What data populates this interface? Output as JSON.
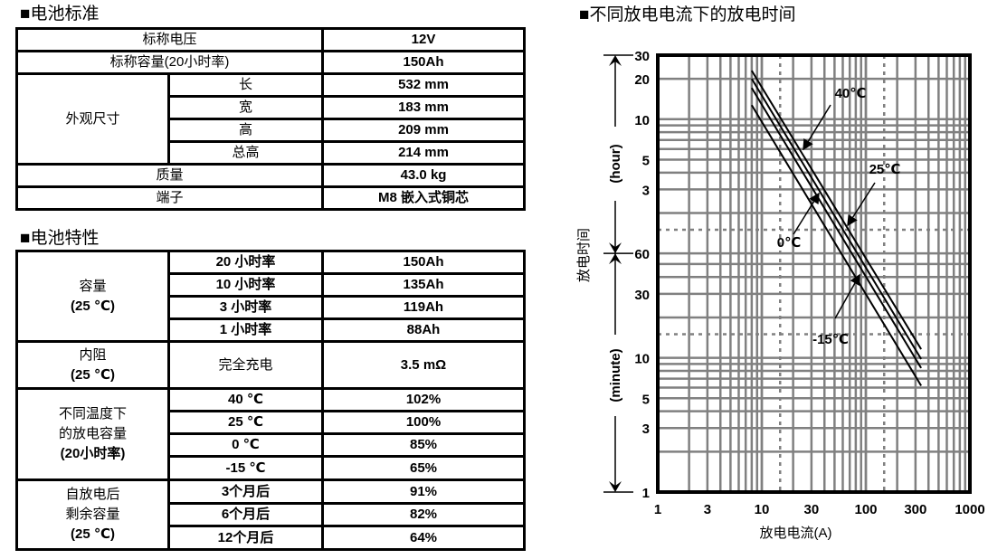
{
  "standard": {
    "heading": "■电池标准",
    "rows": [
      {
        "label": "标称电压",
        "value": "12V"
      },
      {
        "label": "标称容量(20小时率)",
        "value": "150Ah"
      },
      {
        "label": "外观尺寸",
        "sub": [
          {
            "label": "长",
            "value": "532 mm"
          },
          {
            "label": "宽",
            "value": "183 mm"
          },
          {
            "label": "高",
            "value": "209 mm"
          },
          {
            "label": "总高",
            "value": "214 mm"
          }
        ]
      },
      {
        "label": "质量",
        "value": "43.0 kg"
      },
      {
        "label": "端子",
        "value": "M8 嵌入式铜芯"
      }
    ]
  },
  "characteristics": {
    "heading": "■电池特性",
    "groups": [
      {
        "label_lines": [
          "容量",
          "(25 ℃)"
        ],
        "rows": [
          {
            "label": "20 小时率",
            "value": "150Ah"
          },
          {
            "label": "10 小时率",
            "value": "135Ah"
          },
          {
            "label": "3 小时率",
            "value": "119Ah"
          },
          {
            "label": "1 小时率",
            "value": "88Ah"
          }
        ]
      },
      {
        "label_lines": [
          "内阻",
          "(25 ℃)"
        ],
        "rows": [
          {
            "label": "完全充电",
            "value": "3.5 mΩ"
          }
        ]
      },
      {
        "label_lines": [
          "不同温度下",
          "的放电容量",
          "(20小时率)"
        ],
        "rows": [
          {
            "label": "40 ℃",
            "value": "102%"
          },
          {
            "label": "25 ℃",
            "value": "100%"
          },
          {
            "label": "0 ℃",
            "value": "85%"
          },
          {
            "label": "-15  ℃",
            "value": "65%"
          }
        ]
      },
      {
        "label_lines": [
          "自放电后",
          "剩余容量",
          "(25 ℃)"
        ],
        "rows": [
          {
            "label": "3个月后",
            "value": "91%"
          },
          {
            "label": "6个月后",
            "value": "82%"
          },
          {
            "label": "12个月后",
            "value": "64%"
          }
        ]
      }
    ]
  },
  "chart_data": {
    "type": "line",
    "title": "■不同放电电流下的放电时间",
    "xlabel": "放电电流(A)",
    "ylabel": "放电时间",
    "ylabel_hour": "(hour)",
    "ylabel_minute": "(minute)",
    "xscale": "log",
    "yscale": "log",
    "xlim": [
      1,
      1000
    ],
    "ylim_minutes": [
      1,
      1800
    ],
    "x_ticks": [
      {
        "v": 1,
        "label": "1"
      },
      {
        "v": 3,
        "label": "3"
      },
      {
        "v": 10,
        "label": "10"
      },
      {
        "v": 30,
        "label": "30"
      },
      {
        "v": 100,
        "label": "100"
      },
      {
        "v": 300,
        "label": "300"
      },
      {
        "v": 1000,
        "label": "1000"
      }
    ],
    "y_ticks": [
      {
        "minutes": 1800,
        "label": "30"
      },
      {
        "minutes": 1200,
        "label": "20"
      },
      {
        "minutes": 600,
        "label": "10"
      },
      {
        "minutes": 300,
        "label": "5"
      },
      {
        "minutes": 180,
        "label": "3"
      },
      {
        "minutes": 60,
        "label": "60"
      },
      {
        "minutes": 30,
        "label": "30"
      },
      {
        "minutes": 10,
        "label": "10"
      },
      {
        "minutes": 5,
        "label": "5"
      },
      {
        "minutes": 3,
        "label": "3"
      },
      {
        "minutes": 1,
        "label": "1"
      }
    ],
    "grid": true,
    "dotted_x": [
      15,
      150
    ],
    "dotted_y_minutes": [
      90,
      15
    ],
    "series": [
      {
        "name": "40℃",
        "x": [
          8,
          340
        ],
        "y_minutes": [
          1380,
          11.6
        ]
      },
      {
        "name": "25℃",
        "x": [
          8,
          340
        ],
        "y_minutes": [
          1200,
          9.8
        ]
      },
      {
        "name": "0℃",
        "x": [
          8,
          340
        ],
        "y_minutes": [
          1025,
          8.4
        ]
      },
      {
        "name": "-15℃",
        "x": [
          8,
          340
        ],
        "y_minutes": [
          764,
          6.2
        ]
      }
    ]
  }
}
